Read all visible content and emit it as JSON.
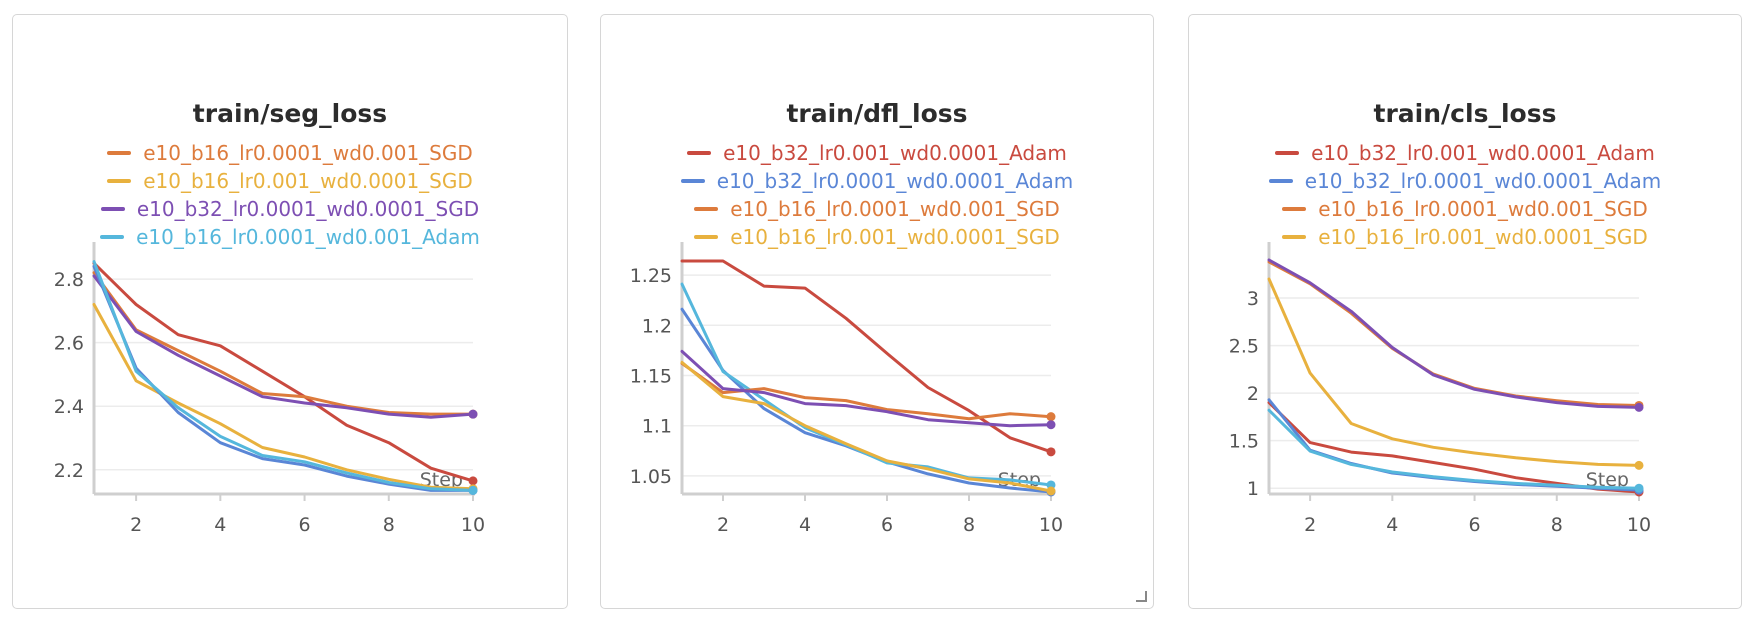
{
  "chart_data": [
    {
      "type": "line",
      "title": "train/seg_loss",
      "xlabel": "Step",
      "ylabel": "",
      "x": [
        1,
        2,
        3,
        4,
        5,
        6,
        7,
        8,
        9,
        10
      ],
      "xlim": [
        1,
        10
      ],
      "ylim": [
        2.13,
        2.86
      ],
      "xticks": [
        2,
        4,
        6,
        8,
        10
      ],
      "yticks": [
        2.2,
        2.4,
        2.6,
        2.8
      ],
      "ytick_labels": [
        "2.2",
        "2.4",
        "2.6",
        "2.8"
      ],
      "legend": [
        {
          "name": "e10_b16_lr0.0001_wd0.001_SGD",
          "color": "#dd7b3c"
        },
        {
          "name": "e10_b16_lr0.001_wd0.0001_SGD",
          "color": "#e8b13e"
        },
        {
          "name": "e10_b32_lr0.0001_wd0.0001_SGD",
          "color": "#7d4fb3"
        },
        {
          "name": "e10_b16_lr0.0001_wd0.001_Adam",
          "color": "#55b7dc"
        }
      ],
      "series": [
        {
          "color": "#c94a3f",
          "values": [
            2.85,
            2.72,
            2.625,
            2.59,
            2.51,
            2.43,
            2.34,
            2.285,
            2.205,
            2.165
          ]
        },
        {
          "color": "#dd7b3c",
          "values": [
            2.82,
            2.64,
            2.575,
            2.51,
            2.44,
            2.43,
            2.4,
            2.38,
            2.375,
            2.375
          ]
        },
        {
          "color": "#7d4fb3",
          "values": [
            2.81,
            2.635,
            2.56,
            2.495,
            2.43,
            2.41,
            2.395,
            2.375,
            2.365,
            2.375
          ]
        },
        {
          "color": "#e8b13e",
          "values": [
            2.72,
            2.48,
            2.41,
            2.345,
            2.27,
            2.24,
            2.2,
            2.17,
            2.145,
            2.14
          ]
        },
        {
          "color": "#5a86d6",
          "values": [
            2.84,
            2.52,
            2.38,
            2.285,
            2.235,
            2.215,
            2.18,
            2.155,
            2.135,
            2.135
          ]
        },
        {
          "color": "#55b7dc",
          "values": [
            2.855,
            2.51,
            2.395,
            2.305,
            2.245,
            2.225,
            2.19,
            2.16,
            2.14,
            2.135
          ]
        }
      ]
    },
    {
      "type": "line",
      "title": "train/dfl_loss",
      "xlabel": "Step",
      "ylabel": "",
      "x": [
        1,
        2,
        3,
        4,
        5,
        6,
        7,
        8,
        9,
        10
      ],
      "xlim": [
        1,
        10
      ],
      "ylim": [
        1.034,
        1.265
      ],
      "xticks": [
        2,
        4,
        6,
        8,
        10
      ],
      "yticks": [
        1.05,
        1.1,
        1.15,
        1.2,
        1.25
      ],
      "ytick_labels": [
        "1.05",
        "1.1",
        "1.15",
        "1.2",
        "1.25"
      ],
      "legend": [
        {
          "name": "e10_b32_lr0.001_wd0.0001_Adam",
          "color": "#c94a3f"
        },
        {
          "name": "e10_b32_lr0.0001_wd0.0001_Adam",
          "color": "#5a86d6"
        },
        {
          "name": "e10_b16_lr0.0001_wd0.001_SGD",
          "color": "#dd7b3c"
        },
        {
          "name": "e10_b16_lr0.001_wd0.0001_SGD",
          "color": "#e8b13e"
        }
      ],
      "series": [
        {
          "color": "#c94a3f",
          "values": [
            1.264,
            1.264,
            1.239,
            1.237,
            1.207,
            1.172,
            1.138,
            1.115,
            1.088,
            1.074
          ]
        },
        {
          "color": "#5a86d6",
          "values": [
            1.216,
            1.155,
            1.117,
            1.093,
            1.08,
            1.064,
            1.052,
            1.043,
            1.038,
            1.034
          ]
        },
        {
          "color": "#55b7dc",
          "values": [
            1.241,
            1.154,
            1.126,
            1.098,
            1.081,
            1.063,
            1.059,
            1.048,
            1.046,
            1.041
          ]
        },
        {
          "color": "#dd7b3c",
          "values": [
            1.162,
            1.133,
            1.137,
            1.128,
            1.125,
            1.116,
            1.112,
            1.107,
            1.112,
            1.109
          ]
        },
        {
          "color": "#7d4fb3",
          "values": [
            1.174,
            1.137,
            1.133,
            1.122,
            1.12,
            1.114,
            1.106,
            1.103,
            1.1,
            1.101
          ]
        },
        {
          "color": "#e8b13e",
          "values": [
            1.163,
            1.129,
            1.122,
            1.1,
            1.082,
            1.065,
            1.057,
            1.047,
            1.043,
            1.035
          ]
        }
      ]
    },
    {
      "type": "line",
      "title": "train/cls_loss",
      "xlabel": "Step",
      "ylabel": "",
      "x": [
        1,
        2,
        3,
        4,
        5,
        6,
        7,
        8,
        9,
        10
      ],
      "xlim": [
        1,
        10
      ],
      "ylim": [
        0.96,
        3.4
      ],
      "xticks": [
        2,
        4,
        6,
        8,
        10
      ],
      "yticks": [
        1,
        1.5,
        2,
        2.5,
        3
      ],
      "ytick_labels": [
        "1",
        "1.5",
        "2",
        "2.5",
        "3"
      ],
      "legend": [
        {
          "name": "e10_b32_lr0.001_wd0.0001_Adam",
          "color": "#c94a3f"
        },
        {
          "name": "e10_b32_lr0.0001_wd0.0001_Adam",
          "color": "#5a86d6"
        },
        {
          "name": "e10_b16_lr0.0001_wd0.001_SGD",
          "color": "#dd7b3c"
        },
        {
          "name": "e10_b16_lr0.001_wd0.0001_SGD",
          "color": "#e8b13e"
        }
      ],
      "series": [
        {
          "color": "#dd7b3c",
          "values": [
            3.38,
            3.15,
            2.84,
            2.47,
            2.2,
            2.05,
            1.97,
            1.92,
            1.88,
            1.87
          ]
        },
        {
          "color": "#7d4fb3",
          "values": [
            3.4,
            3.16,
            2.86,
            2.48,
            2.19,
            2.04,
            1.96,
            1.9,
            1.86,
            1.85
          ]
        },
        {
          "color": "#e8b13e",
          "values": [
            3.2,
            2.21,
            1.68,
            1.52,
            1.43,
            1.37,
            1.32,
            1.28,
            1.25,
            1.24
          ]
        },
        {
          "color": "#c94a3f",
          "values": [
            1.9,
            1.48,
            1.38,
            1.34,
            1.27,
            1.2,
            1.11,
            1.05,
            0.99,
            0.96
          ]
        },
        {
          "color": "#5a86d6",
          "values": [
            1.93,
            1.4,
            1.26,
            1.16,
            1.11,
            1.07,
            1.04,
            1.02,
            1.0,
            0.98
          ]
        },
        {
          "color": "#55b7dc",
          "values": [
            1.82,
            1.39,
            1.25,
            1.17,
            1.12,
            1.08,
            1.05,
            1.03,
            1.01,
            1.0
          ]
        }
      ]
    }
  ]
}
